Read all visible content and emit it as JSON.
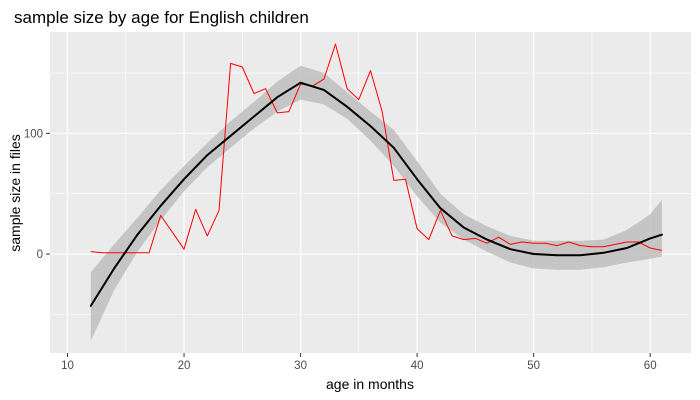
{
  "chart_data": {
    "type": "line",
    "title": "sample size by age for English children",
    "xlabel": "age in months",
    "ylabel": "sample size in files",
    "xlim": [
      8.5,
      63.5
    ],
    "ylim": [
      -82,
      184
    ],
    "x_ticks": [
      10,
      20,
      30,
      40,
      50,
      60
    ],
    "x_tick_labels": [
      "10",
      "20",
      "30",
      "40",
      "50",
      "60"
    ],
    "y_ticks": [
      0,
      100
    ],
    "y_tick_labels": [
      "0",
      "100"
    ],
    "grid": true,
    "legend": "none",
    "colors": {
      "panel": "#ebebeb",
      "grid": "#ffffff",
      "raw_line": "#ff0000",
      "smooth_line": "#000000",
      "ribbon": "#bebebe"
    },
    "series": [
      {
        "kind": "raw",
        "x": [
          12,
          13,
          14,
          15,
          16,
          17,
          18,
          19,
          20,
          21,
          22,
          23,
          24,
          25,
          26,
          27,
          28,
          29,
          30,
          31,
          32,
          33,
          34,
          35,
          36,
          37,
          38,
          39,
          40,
          41,
          42,
          43,
          44,
          45,
          46,
          47,
          48,
          49,
          50,
          51,
          52,
          53,
          54,
          55,
          56,
          57,
          58,
          59,
          60,
          61
        ],
        "values": [
          2,
          1,
          1,
          1,
          1,
          1,
          32,
          18,
          4,
          37,
          15,
          36,
          158,
          155,
          133,
          137,
          117,
          118,
          141,
          139,
          145,
          174,
          137,
          128,
          152,
          118,
          61,
          62,
          21,
          12,
          36,
          15,
          12,
          13,
          9,
          14,
          8,
          10,
          9,
          9,
          7,
          10,
          7,
          6,
          6,
          8,
          10,
          10,
          5,
          3
        ]
      },
      {
        "kind": "smooth",
        "x": [
          12,
          14,
          16,
          18,
          20,
          22,
          24,
          26,
          28,
          30,
          32,
          34,
          36,
          38,
          40,
          42,
          44,
          46,
          48,
          50,
          52,
          54,
          56,
          58,
          60,
          61
        ],
        "values": [
          -43,
          -12,
          16,
          40,
          62,
          82,
          98,
          114,
          130,
          142,
          136,
          122,
          106,
          88,
          62,
          38,
          22,
          12,
          4,
          0,
          -1,
          -1,
          1,
          5,
          13,
          16
        ],
        "ci_low": [
          -72,
          -30,
          2,
          28,
          52,
          72,
          88,
          104,
          118,
          128,
          124,
          112,
          94,
          73,
          48,
          26,
          12,
          2,
          -7,
          -12,
          -13,
          -13,
          -11,
          -7,
          -4,
          -2
        ],
        "ci_high": [
          -15,
          8,
          30,
          53,
          73,
          92,
          110,
          126,
          143,
          156,
          150,
          134,
          118,
          103,
          77,
          50,
          33,
          23,
          15,
          11,
          11,
          11,
          12,
          20,
          33,
          45
        ]
      }
    ]
  }
}
